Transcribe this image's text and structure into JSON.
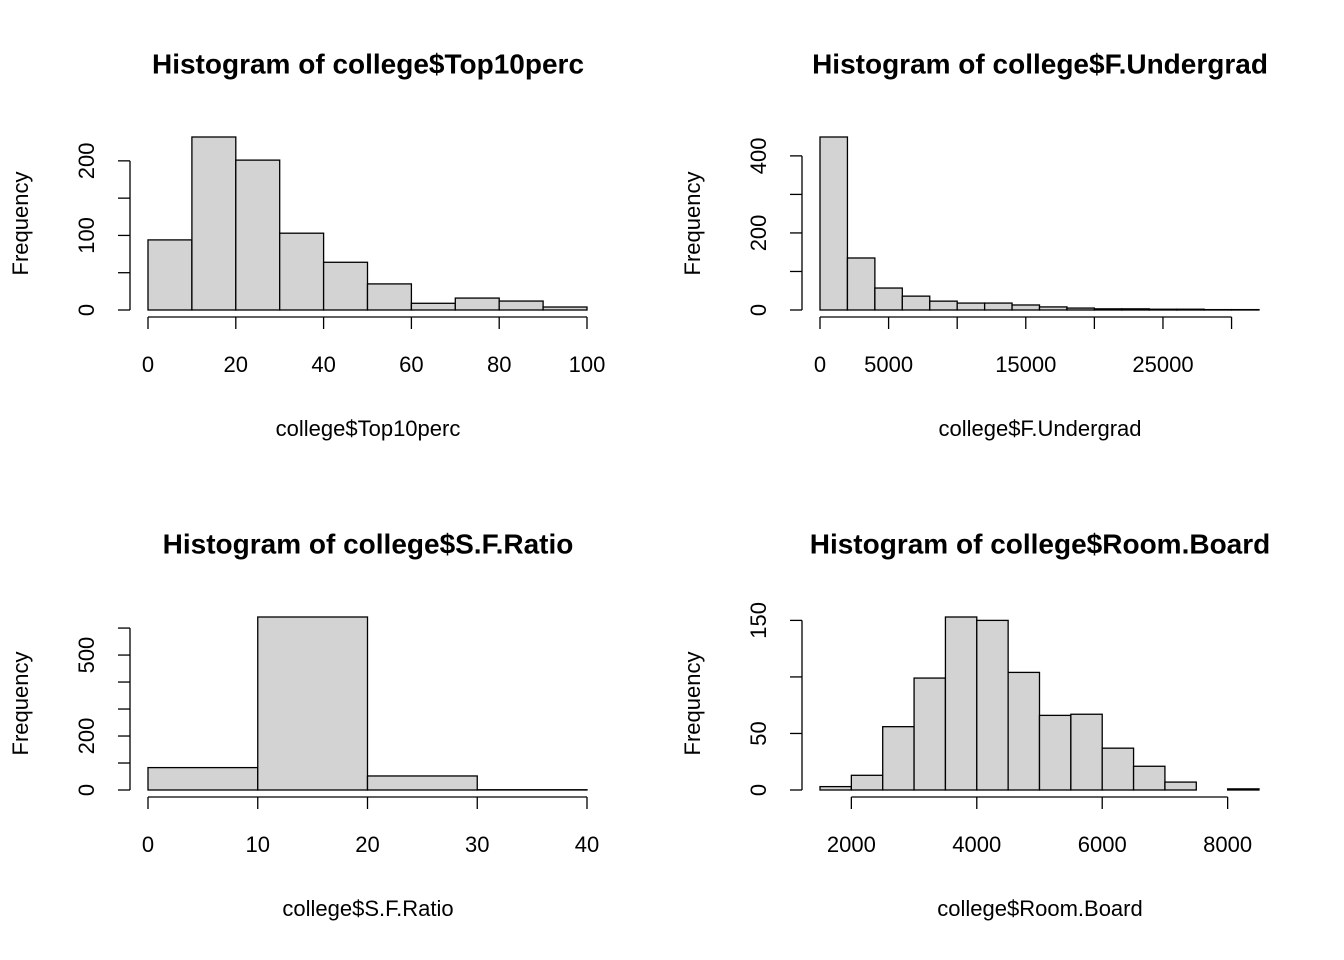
{
  "chart_data": [
    {
      "type": "histogram",
      "title": "Histogram of college$Top10perc",
      "xlabel": "college$Top10perc",
      "ylabel": "Frequency",
      "bins": [
        0,
        10,
        20,
        30,
        40,
        50,
        60,
        70,
        80,
        90,
        100
      ],
      "values": [
        94,
        232,
        201,
        103,
        64,
        35,
        9,
        16,
        12,
        4
      ],
      "color": "#d3d3d3",
      "xlim": [
        0,
        100
      ],
      "ylim": [
        0,
        232
      ],
      "xticks": [
        0,
        20,
        40,
        60,
        80,
        100
      ],
      "yticks": [
        0,
        100,
        200
      ],
      "yticks_unlabeled": [
        50,
        150
      ]
    },
    {
      "type": "histogram",
      "title": "Histogram of college$F.Undergrad",
      "xlabel": "college$F.Undergrad",
      "ylabel": "Frequency",
      "bins": [
        0,
        2000,
        4000,
        6000,
        8000,
        10000,
        12000,
        14000,
        16000,
        18000,
        20000,
        22000,
        24000,
        26000,
        28000,
        30000,
        32000
      ],
      "values": [
        449,
        135,
        57,
        36,
        23,
        18,
        18,
        13,
        8,
        5,
        3,
        3,
        2,
        2,
        1,
        1
      ],
      "color": "#d3d3d3",
      "xlim": [
        0,
        32000
      ],
      "ylim": [
        0,
        449
      ],
      "xticks": [
        0,
        5000,
        15000,
        25000
      ],
      "xticks_unlabeled": [
        10000,
        20000,
        30000
      ],
      "yticks": [
        0,
        200,
        400
      ],
      "yticks_unlabeled": [
        100,
        300
      ]
    },
    {
      "type": "histogram",
      "title": "Histogram of college$S.F.Ratio",
      "xlabel": "college$S.F.Ratio",
      "ylabel": "Frequency",
      "bins": [
        0,
        10,
        20,
        30,
        40
      ],
      "values": [
        83,
        641,
        52,
        1
      ],
      "color": "#d3d3d3",
      "xlim": [
        0,
        40
      ],
      "ylim": [
        0,
        641
      ],
      "xticks": [
        0,
        10,
        20,
        30,
        40
      ],
      "yticks": [
        0,
        200,
        500
      ],
      "yticks_unlabeled": [
        100,
        300,
        400,
        600
      ]
    },
    {
      "type": "histogram",
      "title": "Histogram of college$Room.Board",
      "xlabel": "college$Room.Board",
      "ylabel": "Frequency",
      "bins": [
        1500,
        2000,
        2500,
        3000,
        3500,
        4000,
        4500,
        5000,
        5500,
        6000,
        6500,
        7000,
        7500,
        8000,
        8500
      ],
      "values": [
        3,
        13,
        56,
        99,
        153,
        150,
        104,
        66,
        67,
        37,
        21,
        7,
        0,
        1
      ],
      "color": "#d3d3d3",
      "xlim": [
        1500,
        8500
      ],
      "ylim": [
        0,
        153
      ],
      "xticks": [
        2000,
        4000,
        6000,
        8000
      ],
      "yticks": [
        0,
        50,
        150
      ],
      "yticks_unlabeled": [
        100
      ]
    }
  ]
}
